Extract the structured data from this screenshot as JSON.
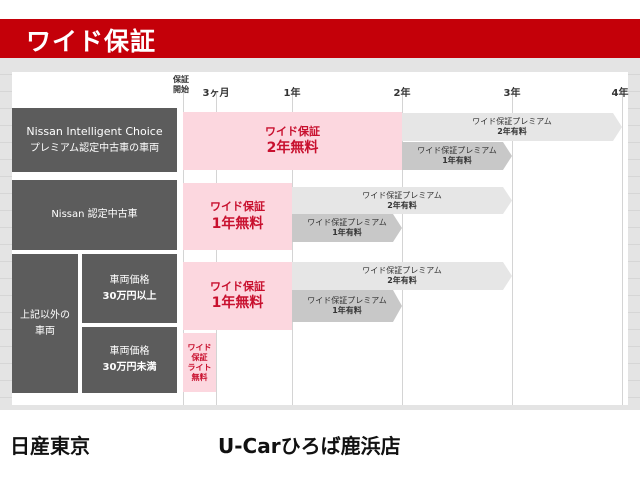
{
  "header": {
    "title": "ワイド保証"
  },
  "timeline": {
    "ticks": [
      "保証開始",
      "3ヶ月",
      "1年",
      "2年",
      "3年",
      "4年"
    ]
  },
  "rows": [
    {
      "label_line1": "Nissan Intelligent Choice",
      "label_line2": "プレミアム認定中古車の車両",
      "free": {
        "line1": "ワイド保証",
        "line2": "2年無料"
      },
      "premium2": {
        "line1": "ワイド保証プレミアム",
        "line2": "2年有料"
      },
      "premium1": {
        "line1": "ワイド保証プレミアム",
        "line2": "1年有料"
      }
    },
    {
      "label_line1": "Nissan 認定中古車",
      "free": {
        "line1": "ワイド保証",
        "line2": "1年無料"
      },
      "premium2": {
        "line1": "ワイド保証プレミアム",
        "line2": "2年有料"
      },
      "premium1": {
        "line1": "ワイド保証プレミアム",
        "line2": "1年有料"
      }
    },
    {
      "group_label_line1": "上記以外の",
      "group_label_line2": "車両",
      "label_line1": "車両価格",
      "label_line2": "30万円以上",
      "free": {
        "line1": "ワイド保証",
        "line2": "1年無料"
      },
      "premium2": {
        "line1": "ワイド保証プレミアム",
        "line2": "2年有料"
      },
      "premium1": {
        "line1": "ワイド保証プレミアム",
        "line2": "1年有料"
      }
    },
    {
      "label_line1": "車両価格",
      "label_line2": "30万円未満",
      "free": {
        "line1": "ワイド",
        "line2": "保証",
        "line3": "ライト",
        "line4": "無料"
      }
    }
  ],
  "footer": {
    "company": "日産東京",
    "store": "U-Carひろば鹿浜店"
  },
  "colors": {
    "header_red": "#c40009",
    "free_pink": "#fcd7df",
    "accent_text": "#c8102e",
    "label_gray": "#5c5c5c",
    "premium_light": "#e6e6e6",
    "premium_dark": "#c8c8c8"
  }
}
